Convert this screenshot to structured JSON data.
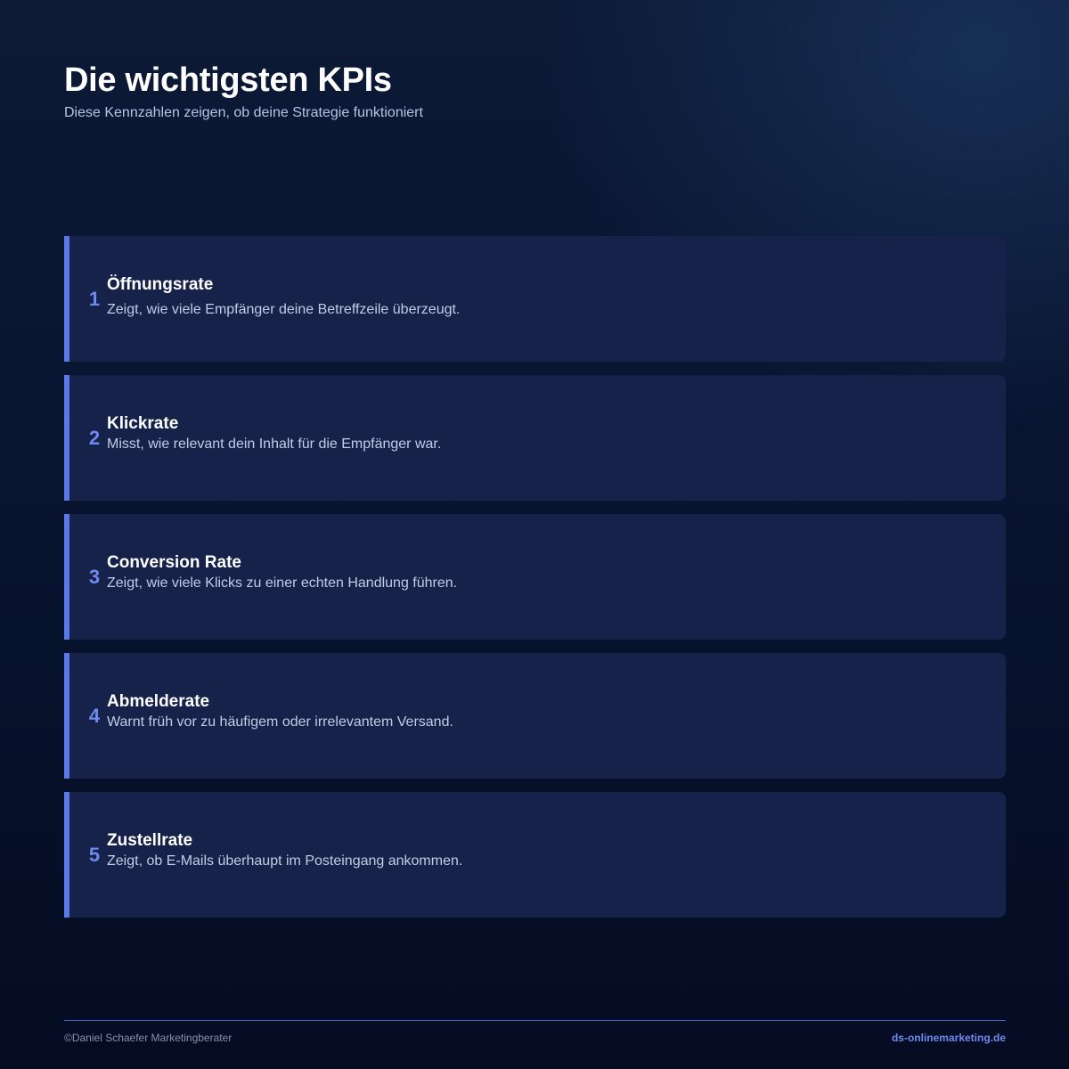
{
  "header": {
    "title": "Die wichtigsten KPIs",
    "subtitle": "Diese Kennzahlen zeigen, ob deine Strategie funktioniert"
  },
  "kpis": [
    {
      "number": "1",
      "title": "Öffnungsrate",
      "description": "Zeigt, wie viele Empfänger deine Betreffzeile überzeugt."
    },
    {
      "number": "2",
      "title": "Klickrate",
      "description": "Misst, wie relevant dein Inhalt für die Empfänger war."
    },
    {
      "number": "3",
      "title": "Conversion Rate",
      "description": "Zeigt, wie viele Klicks zu einer echten Handlung führen."
    },
    {
      "number": "4",
      "title": "Abmelderate",
      "description": "Warnt früh vor zu häufigem oder irrelevantem Versand."
    },
    {
      "number": "5",
      "title": "Zustellrate",
      "description": "Zeigt, ob E-Mails überhaupt im Posteingang ankommen."
    }
  ],
  "footer": {
    "copyright": "©Daniel Schaefer Marketingberater",
    "website": "ds-onlinemarketing.de"
  },
  "colors": {
    "accent": "#5b79e6",
    "card_background": "#16224a",
    "page_background": "#081430"
  }
}
